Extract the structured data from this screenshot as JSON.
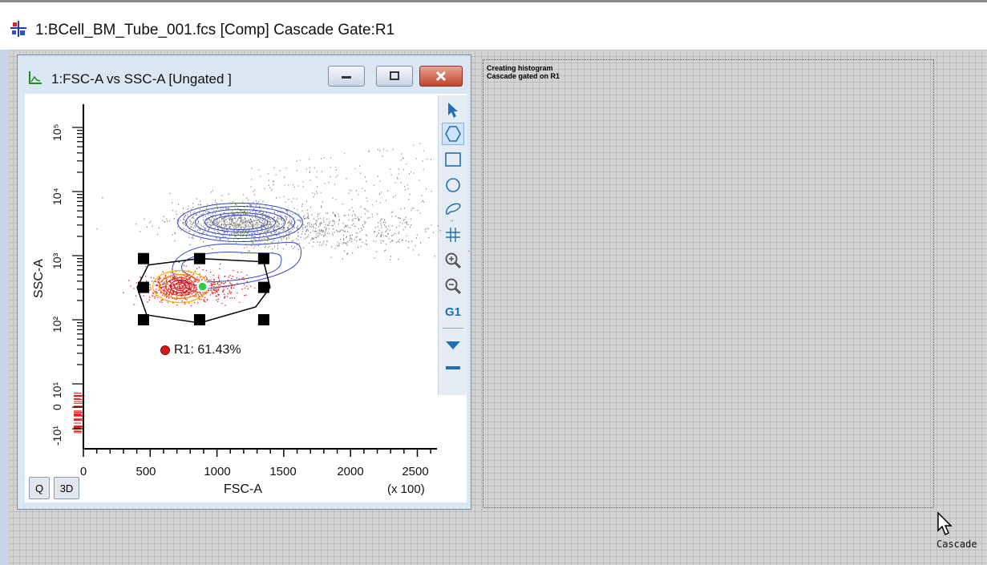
{
  "app": {
    "title": "1:BCell_BM_Tube_001.fcs [Comp] Cascade Gate:R1",
    "icon": "plot-layout-icon"
  },
  "plot_window": {
    "title": "1:FSC-A vs SSC-A [Ungated ]",
    "icon": "histogram-plot-icon",
    "controls": [
      "minimize-icon",
      "maximize-icon",
      "close-icon"
    ],
    "buttons": {
      "q_label": "Q",
      "three_d_label": "3D"
    },
    "gate": {
      "name": "R1",
      "label": "R1: 61.43%",
      "percent": 61.43,
      "color": "#d41818"
    },
    "tools": [
      "arrow-pointer-icon",
      "polygon-gate-icon",
      "rectangle-gate-icon",
      "ellipse-gate-icon",
      "freehand-gate-icon",
      "quadrant-gate-icon",
      "zoom-in-icon",
      "zoom-out-icon",
      "g1-gate-icon",
      "expand-arrow-icon",
      "collapse-icon"
    ],
    "g1_label": "G1",
    "colors": {
      "contour": "#3346c9",
      "gated_events": "#e21c1c",
      "ungated_events": "#7d7d7d"
    }
  },
  "chart_data": {
    "type": "scatter",
    "xlabel": "FSC-A",
    "x_multiplier": "(x 100)",
    "ylabel": "SSC-A",
    "x_ticks": [
      "0",
      "500",
      "1000",
      "1500",
      "2000",
      "2500"
    ],
    "y_ticks": [
      "-10¹",
      "0",
      "10¹",
      "10²",
      "10³",
      "10⁴",
      "10⁵"
    ],
    "xlim": [
      0,
      2600
    ],
    "y_scale": "biexponential",
    "populations": [
      {
        "name": "ungated",
        "center_x": 1150,
        "center_y": 3300,
        "color": "#7d7d7d"
      },
      {
        "name": "R1",
        "center_x": 700,
        "center_y": 330,
        "color": "#e21c1c"
      }
    ],
    "gate_polygon_handles": [
      [
        450,
        900
      ],
      [
        870,
        900
      ],
      [
        1350,
        900
      ],
      [
        450,
        320
      ],
      [
        1350,
        320
      ],
      [
        450,
        100
      ],
      [
        870,
        100
      ],
      [
        1350,
        100
      ]
    ]
  },
  "annotation": {
    "lines": [
      "Creating histogram",
      "Cascade gated on R1"
    ]
  },
  "cursor_label": "Cascade"
}
